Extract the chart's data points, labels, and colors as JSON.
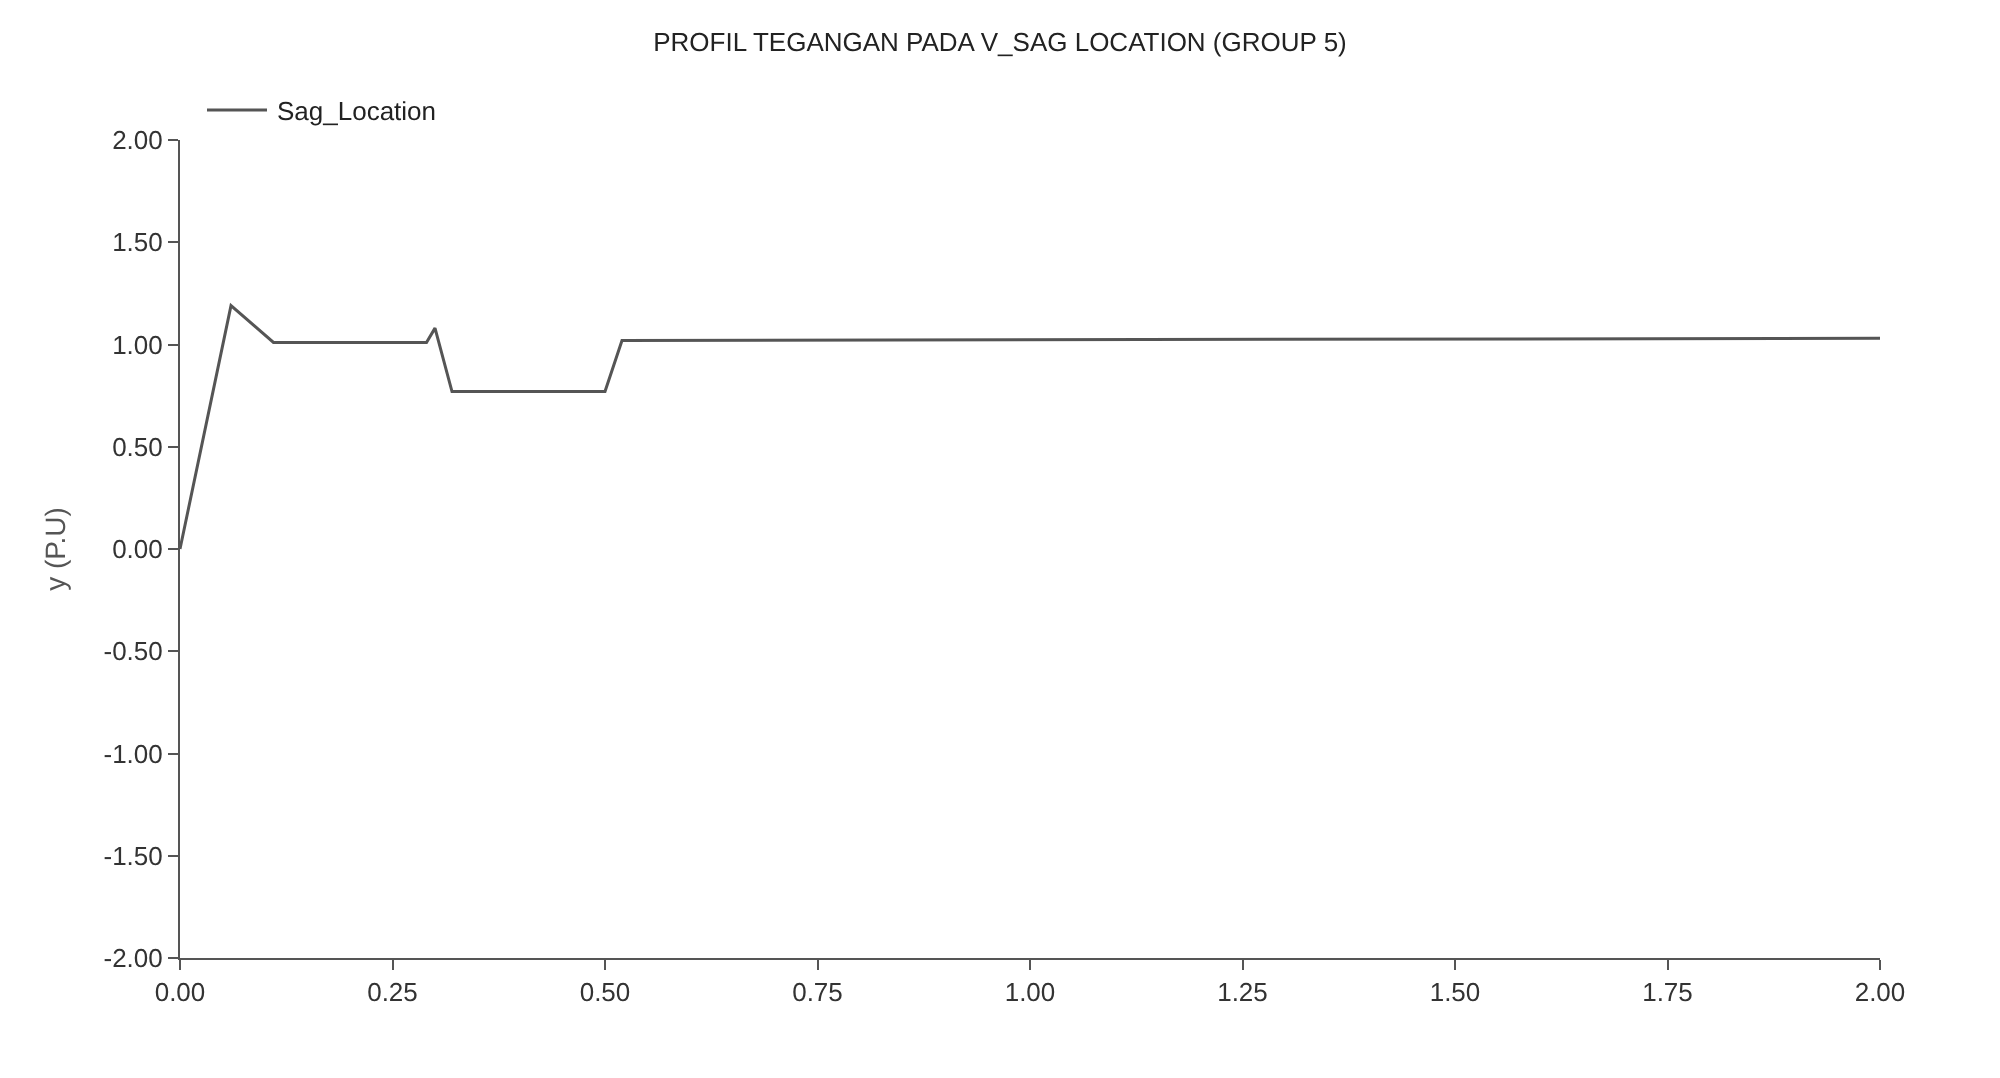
{
  "chart_data": {
    "type": "line",
    "title": "PROFIL TEGANGAN PADA V_SAG LOCATION (GROUP 5)",
    "ylabel": "y (P.U)",
    "x": [
      0,
      0.06,
      0.11,
      0.29,
      0.3,
      0.32,
      0.5,
      0.52,
      2.0
    ],
    "series": [
      {
        "name": "Sag_Location",
        "color": "#555555",
        "values": [
          0,
          1.19,
          1.01,
          1.01,
          1.08,
          0.77,
          0.77,
          1.02,
          1.03
        ]
      }
    ],
    "xlim": [
      0,
      2
    ],
    "xticks": [
      {
        "value": 0,
        "label": "0.00"
      },
      {
        "value": 0.25,
        "label": "0.25"
      },
      {
        "value": 0.5,
        "label": "0.50"
      },
      {
        "value": 0.75,
        "label": "0.75"
      },
      {
        "value": 1,
        "label": "1.00"
      },
      {
        "value": 1.25,
        "label": "1.25"
      },
      {
        "value": 1.5,
        "label": "1.50"
      },
      {
        "value": 1.75,
        "label": "1.75"
      },
      {
        "value": 2,
        "label": "2.00"
      }
    ],
    "ylim": [
      -2,
      2
    ],
    "yticks": [
      {
        "value": -2,
        "label": "-2.00"
      },
      {
        "value": -1.5,
        "label": "-1.50"
      },
      {
        "value": -1,
        "label": "-1.00"
      },
      {
        "value": -0.5,
        "label": "-0.50"
      },
      {
        "value": 0,
        "label": "0.00"
      },
      {
        "value": 0.5,
        "label": "0.50"
      },
      {
        "value": 1,
        "label": "1.00"
      },
      {
        "value": 1.5,
        "label": "1.50"
      },
      {
        "value": 2,
        "label": "2.00"
      }
    ],
    "legend": "top left",
    "marker": "none",
    "line_style": "solid"
  }
}
